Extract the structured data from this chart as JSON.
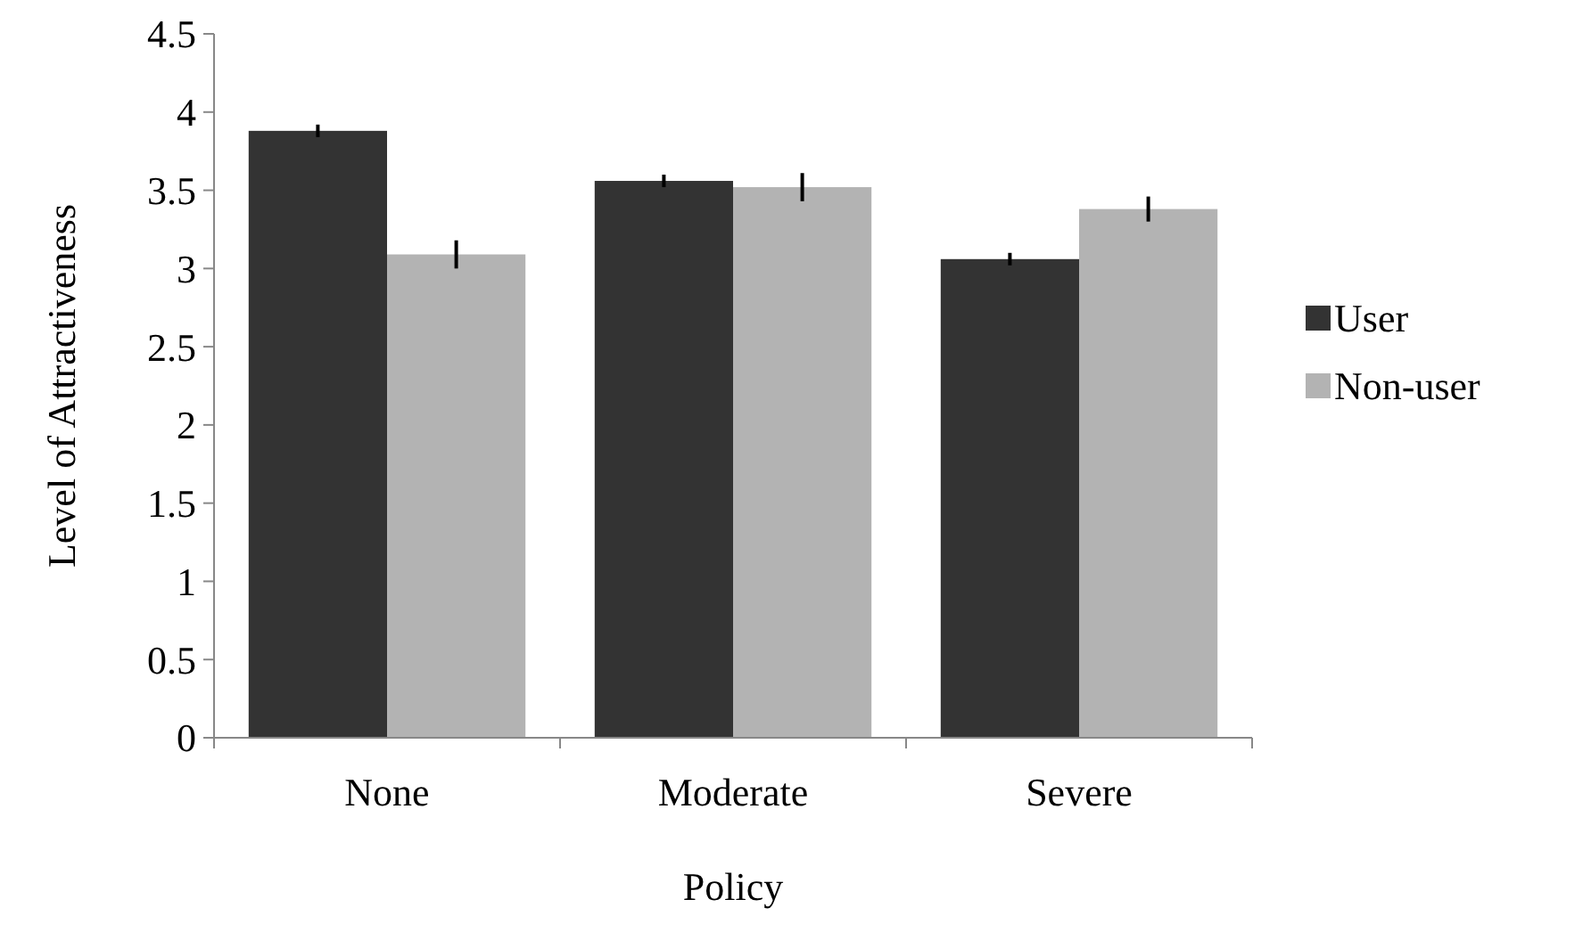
{
  "chart_data": {
    "type": "bar",
    "xlabel": "Policy",
    "ylabel": "Level of Attractiveness",
    "categories": [
      "None",
      "Moderate",
      "Severe"
    ],
    "series": [
      {
        "name": "User",
        "color": "#333333",
        "values": [
          3.88,
          3.56,
          3.06
        ],
        "errors": [
          0.04,
          0.04,
          0.04
        ]
      },
      {
        "name": "Non-user",
        "color": "#b3b3b3",
        "values": [
          3.09,
          3.52,
          3.38
        ],
        "errors": [
          0.09,
          0.09,
          0.08
        ]
      }
    ],
    "ylim": [
      0,
      4.5
    ],
    "yticks": [
      0,
      0.5,
      1,
      1.5,
      2,
      2.5,
      3,
      3.5,
      4,
      4.5
    ],
    "grid": false,
    "legend": "right"
  }
}
